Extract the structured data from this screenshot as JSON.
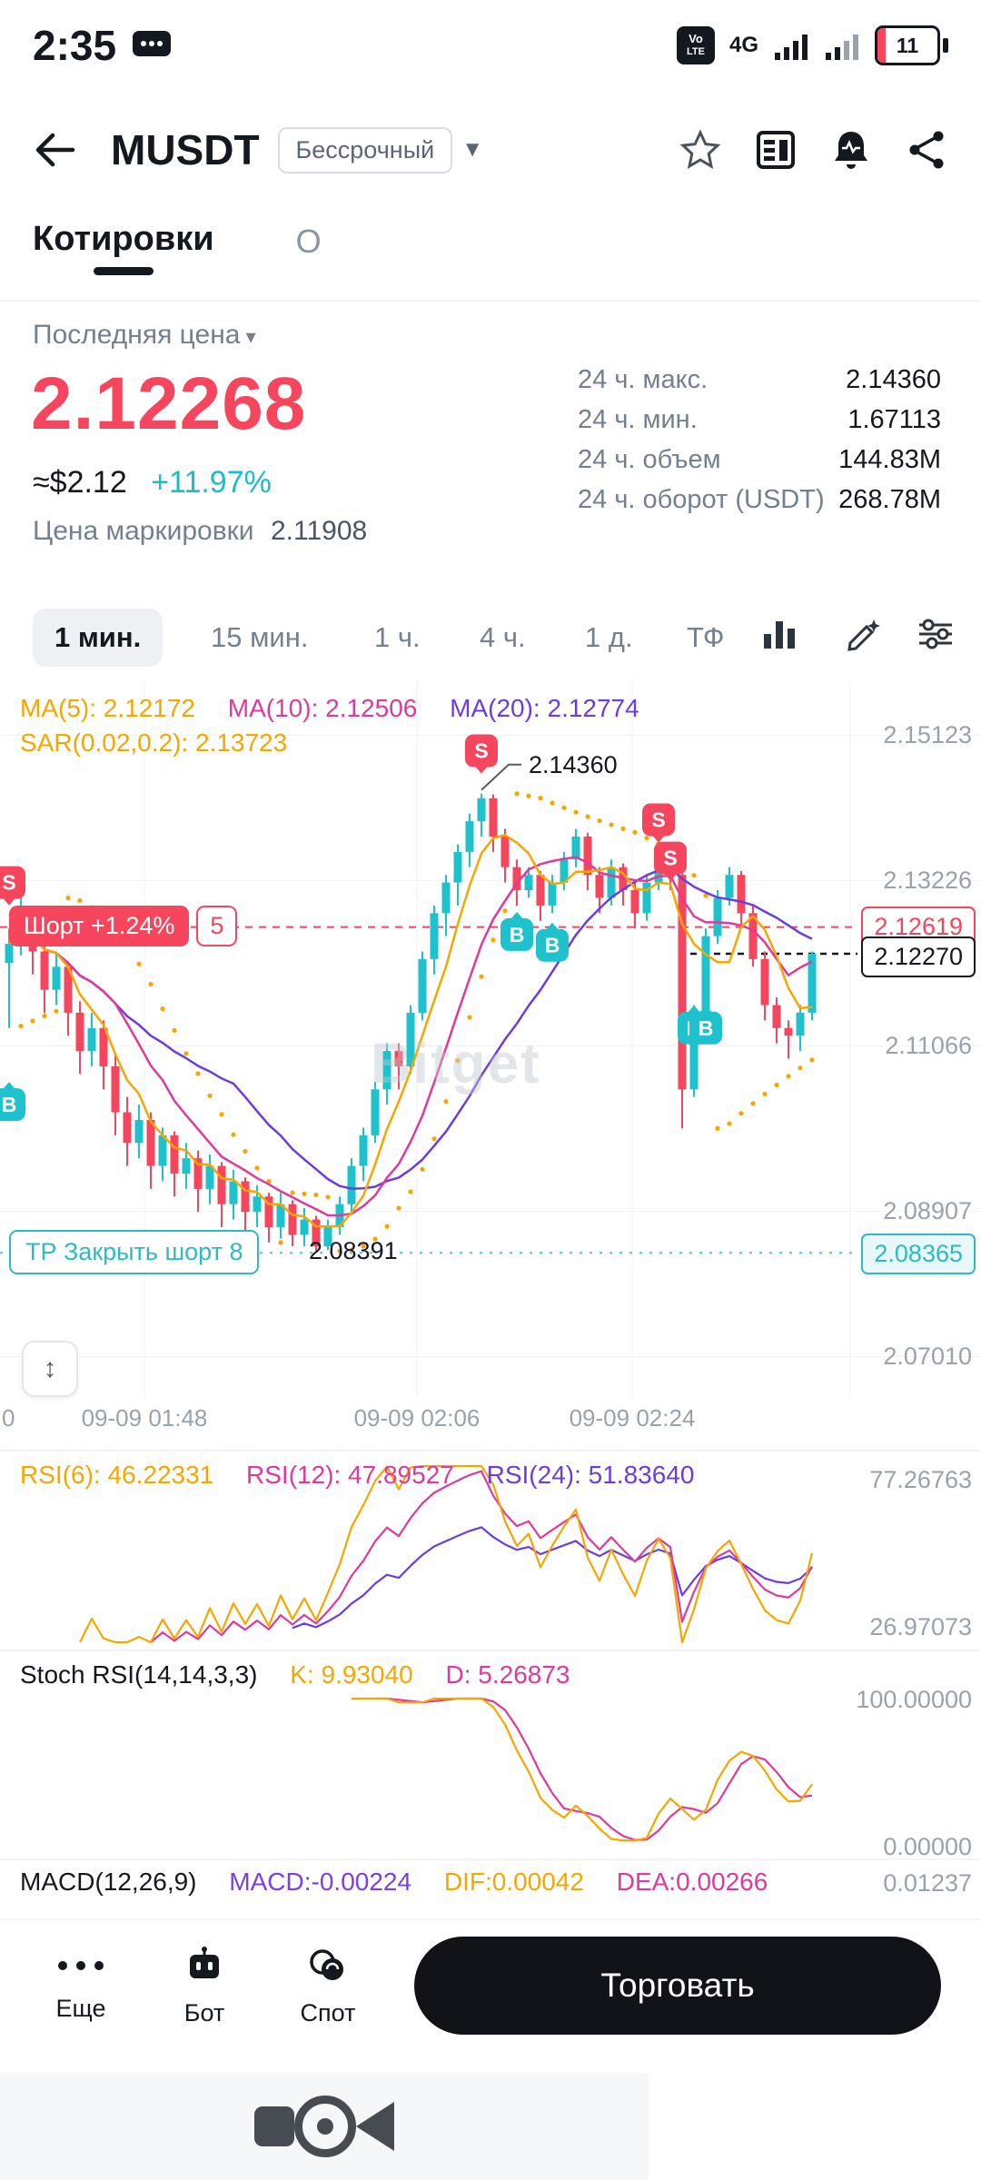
{
  "status_bar": {
    "time": "2:35",
    "network": "4G",
    "volte": "VoLTE",
    "battery_level": "11"
  },
  "header": {
    "symbol": "MUSDT",
    "contract_badge": "Бессрочный"
  },
  "tabs": {
    "quotes": "Котировки",
    "info": "О"
  },
  "price_panel": {
    "last_price_label": "Последняя цена",
    "last_price": "2.12268",
    "usd_approx": "≈$2.12",
    "change_pct": "+11.97%",
    "mark_price_label": "Цена маркировки",
    "mark_price": "2.11908",
    "stats": [
      {
        "label": "24 ч. макс.",
        "value": "2.14360"
      },
      {
        "label": "24 ч. мин.",
        "value": "1.67113"
      },
      {
        "label": "24 ч. объем",
        "value": "144.83M"
      },
      {
        "label": "24 ч. оборот (USDT)",
        "value": "268.78M"
      }
    ]
  },
  "timeframes": {
    "m1": "1 мин.",
    "m15": "15 мин.",
    "h1": "1 ч.",
    "h4": "4 ч.",
    "d1": "1 д.",
    "tf": "ТФ"
  },
  "chart": {
    "ma5_label": "MA(5): 2.12172",
    "ma10_label": "MA(10): 2.12506",
    "ma20_label": "MA(20): 2.12774",
    "sar_label": "SAR(0.02,0.2): 2.13723",
    "y_labels": [
      "2.15123",
      "2.13226",
      "2.11066",
      "2.08907",
      "2.07010"
    ],
    "x_labels": [
      "0",
      "09-09 01:48",
      "09-09 02:06",
      "09-09 02:24"
    ],
    "high_label": "2.14360",
    "low_label": "2.08391",
    "short_pill": "Шорт +1.24%",
    "short_count": "5",
    "entry_tag": "2.12619",
    "entry_price": 2.12619,
    "current_tag": "2.12270",
    "current_price": 2.1227,
    "tp_pill": "ТР Закрыть шорт 8",
    "tp_tag": "2.08365",
    "tp_price": 2.08365,
    "watermark": "Bitget",
    "colors": {
      "up": "#1ec2cd",
      "down": "#f5465d",
      "ma5": "#f7a600",
      "ma10": "#e0399b",
      "ma20": "#6d3ce0",
      "sar": "#f7a600",
      "grid": "#f0f2f5",
      "entry_line": "#f5465d",
      "current_line": "#14181f",
      "tp_line": "#49c5cf"
    },
    "candles": [
      [
        2.1215,
        2.126,
        2.113,
        2.124
      ],
      [
        2.124,
        2.13,
        2.1225,
        2.128
      ],
      [
        2.128,
        2.129,
        2.12,
        2.123
      ],
      [
        2.123,
        2.1245,
        2.115,
        2.118
      ],
      [
        2.118,
        2.123,
        2.116,
        2.121
      ],
      [
        2.121,
        2.1215,
        2.112,
        2.115
      ],
      [
        2.115,
        2.1165,
        2.107,
        2.11
      ],
      [
        2.11,
        2.115,
        2.108,
        2.113
      ],
      [
        2.113,
        2.114,
        2.105,
        2.108
      ],
      [
        2.108,
        2.1095,
        2.099,
        2.102
      ],
      [
        2.102,
        2.104,
        2.095,
        2.098
      ],
      [
        2.098,
        2.103,
        2.096,
        2.101
      ],
      [
        2.101,
        2.102,
        2.092,
        2.095
      ],
      [
        2.095,
        2.1,
        2.093,
        2.099
      ],
      [
        2.099,
        2.0995,
        2.091,
        2.094
      ],
      [
        2.094,
        2.098,
        2.092,
        2.096
      ],
      [
        2.096,
        2.097,
        2.089,
        2.092
      ],
      [
        2.092,
        2.0965,
        2.09,
        2.095
      ],
      [
        2.095,
        2.0955,
        2.087,
        2.09
      ],
      [
        2.09,
        2.0945,
        2.088,
        2.093
      ],
      [
        2.093,
        2.0935,
        2.086,
        2.089
      ],
      [
        2.089,
        2.0925,
        2.087,
        2.091
      ],
      [
        2.091,
        2.0915,
        2.085,
        2.087
      ],
      [
        2.087,
        2.0915,
        2.0855,
        2.09
      ],
      [
        2.09,
        2.0905,
        2.0845,
        2.086
      ],
      [
        2.086,
        2.0895,
        2.0845,
        2.088
      ],
      [
        2.088,
        2.0885,
        2.0839,
        2.0845
      ],
      [
        2.0845,
        2.088,
        2.084,
        2.087
      ],
      [
        2.087,
        2.091,
        2.086,
        2.09
      ],
      [
        2.09,
        2.096,
        2.089,
        2.095
      ],
      [
        2.095,
        2.1,
        2.093,
        2.099
      ],
      [
        2.099,
        2.106,
        2.098,
        2.105
      ],
      [
        2.105,
        2.111,
        2.103,
        2.11
      ],
      [
        2.11,
        2.111,
        2.105,
        2.108
      ],
      [
        2.108,
        2.116,
        2.107,
        2.115
      ],
      [
        2.115,
        2.123,
        2.114,
        2.122
      ],
      [
        2.122,
        2.129,
        2.12,
        2.128
      ],
      [
        2.128,
        2.133,
        2.125,
        2.132
      ],
      [
        2.132,
        2.137,
        2.129,
        2.136
      ],
      [
        2.136,
        2.141,
        2.134,
        2.14
      ],
      [
        2.14,
        2.1436,
        2.138,
        2.143
      ],
      [
        2.143,
        2.1435,
        2.136,
        2.138
      ],
      [
        2.138,
        2.139,
        2.132,
        2.134
      ],
      [
        2.134,
        2.135,
        2.129,
        2.131
      ],
      [
        2.131,
        2.134,
        2.13,
        2.133
      ],
      [
        2.133,
        2.1335,
        2.127,
        2.129
      ],
      [
        2.129,
        2.133,
        2.128,
        2.132
      ],
      [
        2.132,
        2.136,
        2.131,
        2.135
      ],
      [
        2.135,
        2.139,
        2.134,
        2.138
      ],
      [
        2.138,
        2.1385,
        2.131,
        2.133
      ],
      [
        2.133,
        2.134,
        2.128,
        2.13
      ],
      [
        2.13,
        2.135,
        2.129,
        2.134
      ],
      [
        2.134,
        2.1345,
        2.129,
        2.131
      ],
      [
        2.131,
        2.132,
        2.126,
        2.128
      ],
      [
        2.128,
        2.133,
        2.127,
        2.132
      ],
      [
        2.132,
        2.136,
        2.131,
        2.135
      ],
      [
        2.135,
        2.1355,
        2.131,
        2.133
      ],
      [
        2.133,
        2.1335,
        2.0999,
        2.105
      ],
      [
        2.105,
        2.116,
        2.104,
        2.115
      ],
      [
        2.115,
        2.126,
        2.114,
        2.125
      ],
      [
        2.125,
        2.131,
        2.124,
        2.13
      ],
      [
        2.13,
        2.134,
        2.129,
        2.133
      ],
      [
        2.133,
        2.1335,
        2.126,
        2.128
      ],
      [
        2.128,
        2.129,
        2.121,
        2.122
      ],
      [
        2.122,
        2.123,
        2.114,
        2.116
      ],
      [
        2.116,
        2.117,
        2.111,
        2.113
      ],
      [
        2.113,
        2.114,
        2.109,
        2.112
      ],
      [
        2.112,
        2.116,
        2.11,
        2.115
      ],
      [
        2.115,
        2.123,
        2.114,
        2.1227
      ]
    ],
    "markers": [
      {
        "t": "S",
        "i": 0,
        "p": 2.132
      },
      {
        "t": "B",
        "i": 0,
        "p": 2.103
      },
      {
        "t": "S",
        "i": 40,
        "p": 2.1492
      },
      {
        "t": "B",
        "i": 43,
        "p": 2.1252
      },
      {
        "t": "B",
        "i": 46,
        "p": 2.1238
      },
      {
        "t": "S",
        "i": 55,
        "p": 2.1402
      },
      {
        "t": "S",
        "i": 56,
        "p": 2.1352
      },
      {
        "t": "B",
        "i": 58,
        "p": 2.113
      },
      {
        "t": "B",
        "i": 59,
        "p": 2.113
      }
    ]
  },
  "rsi_panel": {
    "rsi6_label": "RSI(6): 46.22331",
    "rsi12_label": "RSI(12): 47.89527",
    "rsi24_label": "RSI(24): 51.83640",
    "top_label": "77.26763",
    "bottom_label": "26.97073"
  },
  "stoch_panel": {
    "title": "Stoch RSI(14,14,3,3)",
    "k_label": "K: 9.93040",
    "d_label": "D: 5.26873",
    "top_label": "100.00000",
    "bottom_label": "0.00000"
  },
  "macd_panel": {
    "title": "MACD(12,26,9)",
    "macd_label": "MACD:-0.00224",
    "dif_label": "DIF:0.00042",
    "dea_label": "DEA:0.00266",
    "right_label": "0.01237"
  },
  "bottom_bar": {
    "more": "Еще",
    "bot": "Бот",
    "spot": "Спот",
    "trade": "Торговать"
  }
}
